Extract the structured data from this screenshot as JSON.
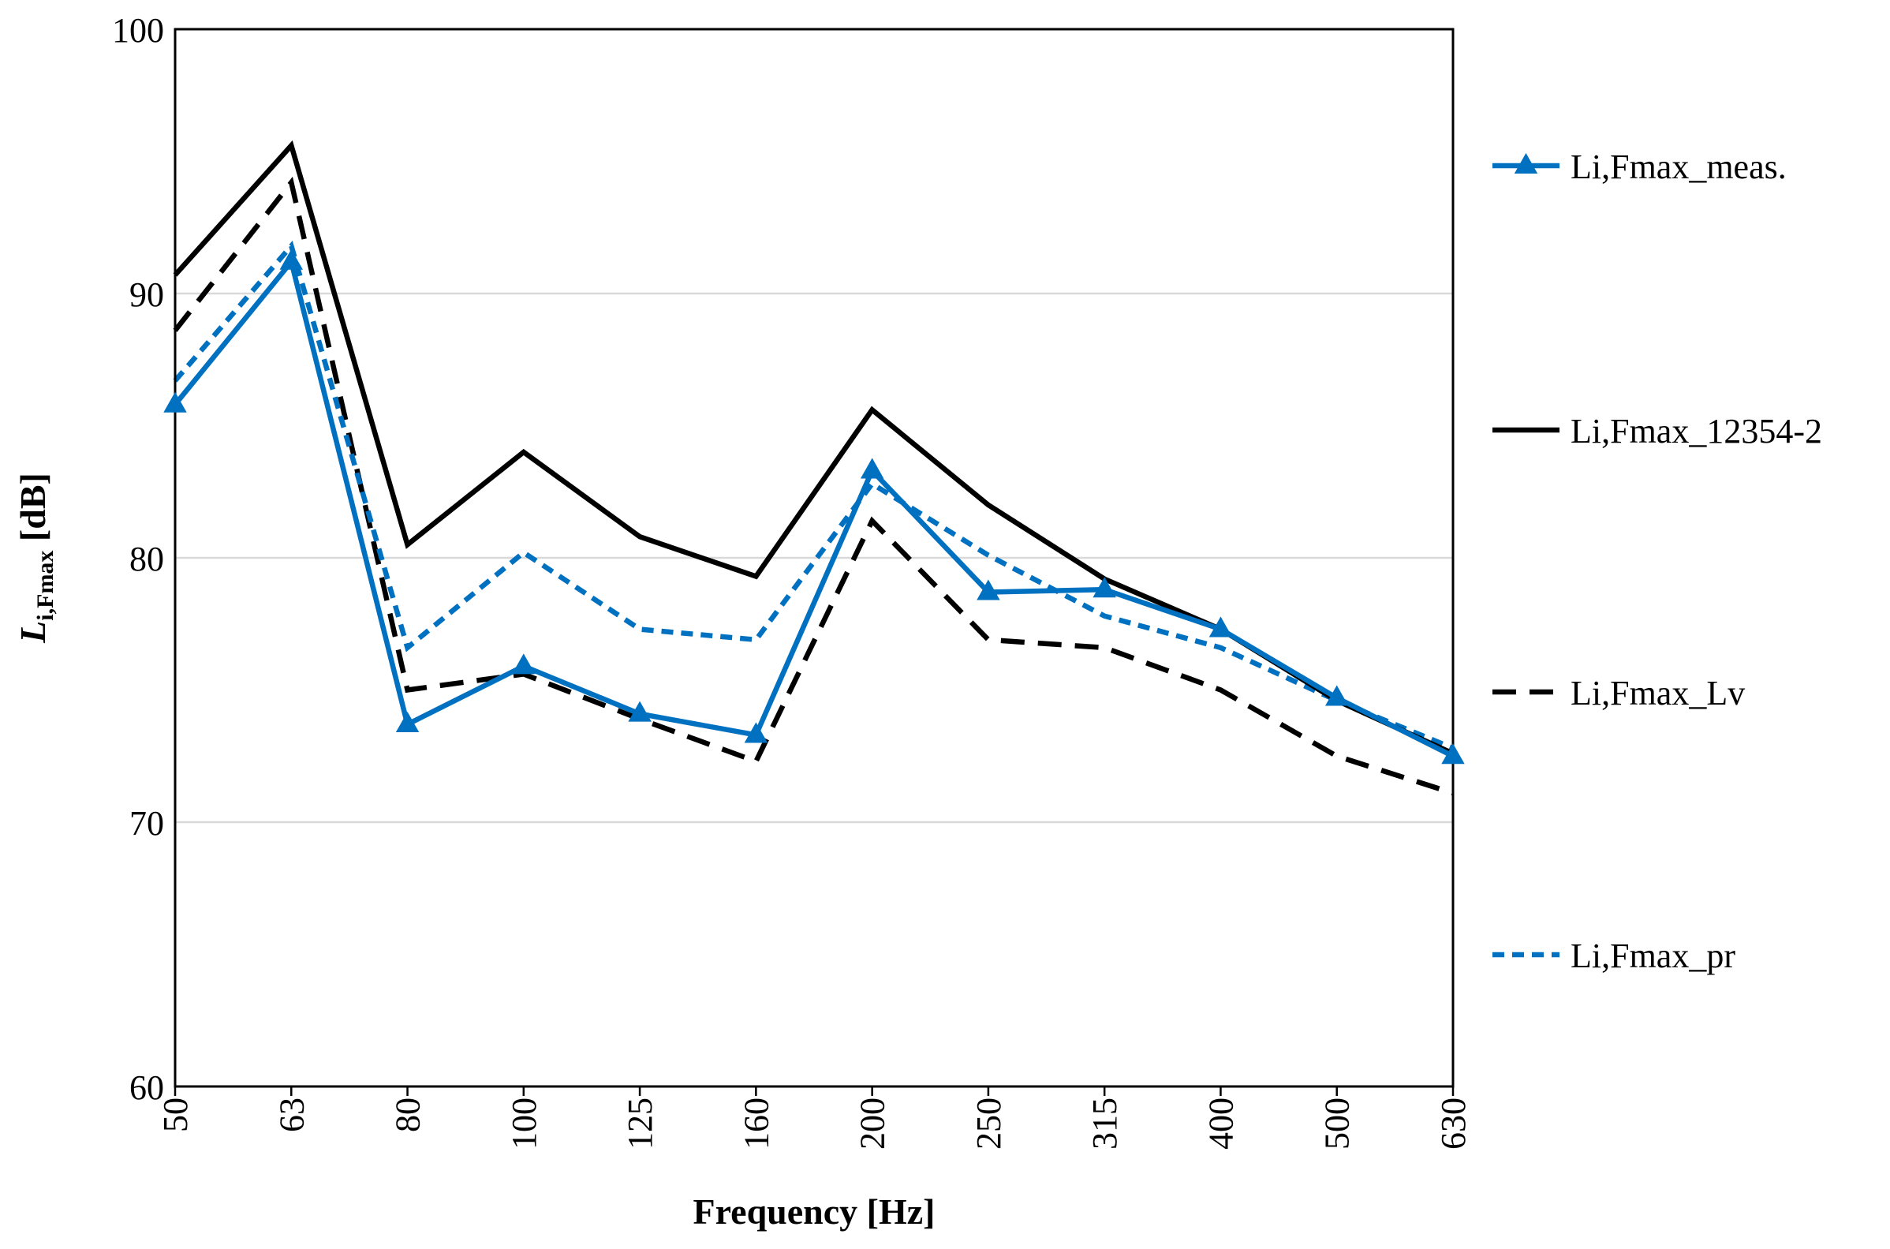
{
  "chart_data": {
    "type": "line",
    "categories": [
      "50",
      "63",
      "80",
      "100",
      "125",
      "160",
      "200",
      "250",
      "315",
      "400",
      "500",
      "630"
    ],
    "xlabel": "Frequency [Hz]",
    "ylabel": {
      "base": "L",
      "subscript": "i,Fmax",
      "unit": "[dB]"
    },
    "ylim": [
      60,
      100
    ],
    "yticks": [
      60,
      70,
      80,
      90,
      100
    ],
    "grid": true,
    "legend_position": "right",
    "series": [
      {
        "name": "Li,Fmax_meas.",
        "color": "#0070C0",
        "dash": "solid",
        "marker": "triangle",
        "values": [
          85.8,
          91.2,
          73.7,
          75.9,
          74.1,
          73.3,
          83.3,
          78.7,
          78.8,
          77.3,
          74.7,
          72.5
        ]
      },
      {
        "name": "Li,Fmax_12354-2",
        "color": "#000000",
        "dash": "solid",
        "marker": "none",
        "values": [
          90.7,
          95.6,
          80.5,
          84.0,
          80.8,
          79.3,
          85.6,
          82.0,
          79.2,
          77.3,
          74.6,
          72.6
        ]
      },
      {
        "name": "Li,Fmax_Lv",
        "color": "#000000",
        "dash": "dashed",
        "marker": "none",
        "values": [
          88.6,
          94.2,
          75.0,
          75.6,
          73.9,
          72.3,
          81.4,
          76.9,
          76.6,
          75.0,
          72.5,
          71.1
        ]
      },
      {
        "name": "Li,Fmax_pr",
        "color": "#0070C0",
        "dash": "dotted",
        "marker": "none",
        "values": [
          86.7,
          91.8,
          76.6,
          80.2,
          77.3,
          76.9,
          82.8,
          80.1,
          77.8,
          76.6,
          74.6,
          72.8
        ]
      }
    ]
  }
}
